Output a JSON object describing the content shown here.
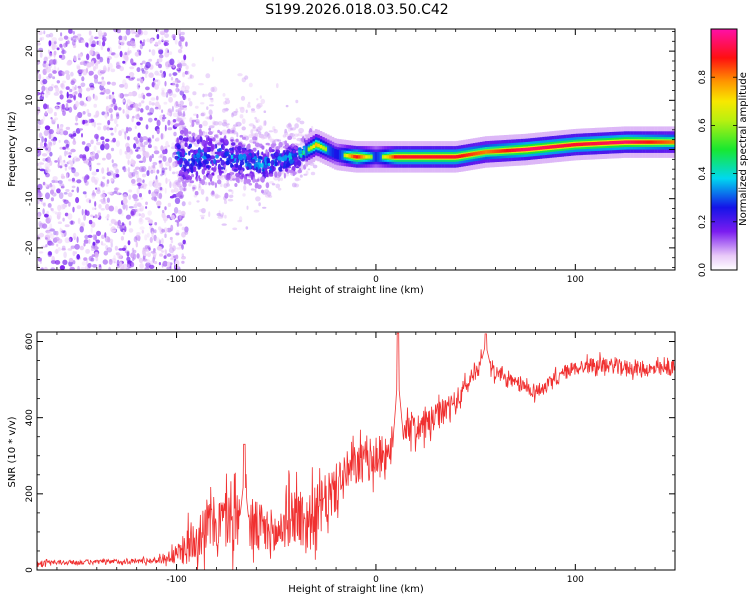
{
  "title": "S199.2026.018.03.50.C42",
  "chart_data": [
    {
      "type": "heatmap",
      "title": "S199.2026.018.03.50.C42",
      "xlabel": "Height of straight line (km)",
      "ylabel": "Frequency (Hz)",
      "xlim": [
        -170,
        150
      ],
      "ylim": [
        -24.5,
        24.5
      ],
      "x_ticks": [
        -100,
        0,
        100
      ],
      "y_ticks": [
        -20,
        -10,
        0,
        10,
        20
      ],
      "colorbar": {
        "label": "Normalized spectral amplitude",
        "range": [
          0.0,
          1.0
        ],
        "ticks": [
          0.0,
          0.2,
          0.4,
          0.6,
          0.8
        ],
        "tick_labels": [
          "0.0",
          "0.2",
          "0.4",
          "0.6",
          "0.8"
        ],
        "colormap": "rainbow (white-violet-blue-cyan-green-yellow-orange-red-magenta)"
      },
      "ridge": {
        "description": "noise at low heights, converging to a narrow band near 0 Hz above about -30 km",
        "points": [
          {
            "x": -95,
            "freq": -1.5,
            "amp": 0.35
          },
          {
            "x": -75,
            "freq": -1.5,
            "amp": 0.35
          },
          {
            "x": -55,
            "freq": -3.0,
            "amp": 0.4
          },
          {
            "x": -40,
            "freq": -1.5,
            "amp": 0.4
          },
          {
            "x": -30,
            "freq": 1.0,
            "amp": 0.75
          },
          {
            "x": -20,
            "freq": -1.0,
            "amp": 0.45
          },
          {
            "x": -10,
            "freq": -1.5,
            "amp": 0.9
          },
          {
            "x": 0,
            "freq": -1.5,
            "amp": 0.5
          },
          {
            "x": 10,
            "freq": -1.5,
            "amp": 0.9
          },
          {
            "x": 25,
            "freq": -1.5,
            "amp": 0.9
          },
          {
            "x": 40,
            "freq": -1.5,
            "amp": 0.9
          },
          {
            "x": 55,
            "freq": -0.5,
            "amp": 0.8
          },
          {
            "x": 75,
            "freq": 0.0,
            "amp": 0.95
          },
          {
            "x": 100,
            "freq": 1.0,
            "amp": 0.9
          },
          {
            "x": 125,
            "freq": 1.5,
            "amp": 0.95
          },
          {
            "x": 150,
            "freq": 1.5,
            "amp": 0.8
          }
        ]
      }
    },
    {
      "type": "line",
      "xlabel": "Height of straight line (km)",
      "ylabel": "SNR (10 * v/v)",
      "xlim": [
        -170,
        150
      ],
      "ylim": [
        0,
        625
      ],
      "x_ticks": [
        -100,
        0,
        100
      ],
      "y_ticks": [
        0,
        200,
        400,
        600
      ],
      "color": "#f03030",
      "series": [
        {
          "name": "SNR",
          "x": [
            -170,
            -150,
            -130,
            -110,
            -100,
            -95,
            -90,
            -85,
            -80,
            -75,
            -70,
            -65,
            -60,
            -55,
            -50,
            -45,
            -40,
            -35,
            -30,
            -25,
            -20,
            -15,
            -10,
            -5,
            0,
            5,
            10,
            15,
            20,
            25,
            30,
            35,
            40,
            45,
            50,
            55,
            60,
            65,
            70,
            75,
            80,
            85,
            90,
            95,
            100,
            110,
            120,
            130,
            140,
            150
          ],
          "values": [
            18,
            20,
            22,
            25,
            40,
            60,
            90,
            120,
            120,
            135,
            130,
            120,
            110,
            100,
            90,
            130,
            150,
            120,
            150,
            180,
            215,
            250,
            275,
            285,
            295,
            310,
            340,
            380,
            370,
            380,
            400,
            420,
            440,
            480,
            525,
            550,
            520,
            500,
            490,
            480,
            470,
            480,
            500,
            520,
            530,
            540,
            535,
            530,
            525,
            530
          ],
          "spread": [
            8,
            8,
            8,
            10,
            30,
            60,
            80,
            90,
            90,
            100,
            110,
            100,
            90,
            85,
            80,
            90,
            100,
            110,
            90,
            90,
            80,
            75,
            70,
            70,
            70,
            65,
            60,
            55,
            50,
            50,
            45,
            45,
            40,
            35,
            30,
            30,
            25,
            25,
            25,
            25,
            25,
            25,
            25,
            25,
            25,
            25,
            25,
            25,
            25,
            25
          ],
          "peaks": [
            {
              "x": 11,
              "value": 622
            },
            {
              "x": 55,
              "value": 620
            },
            {
              "x": -66,
              "value": 330
            }
          ]
        }
      ]
    }
  ]
}
